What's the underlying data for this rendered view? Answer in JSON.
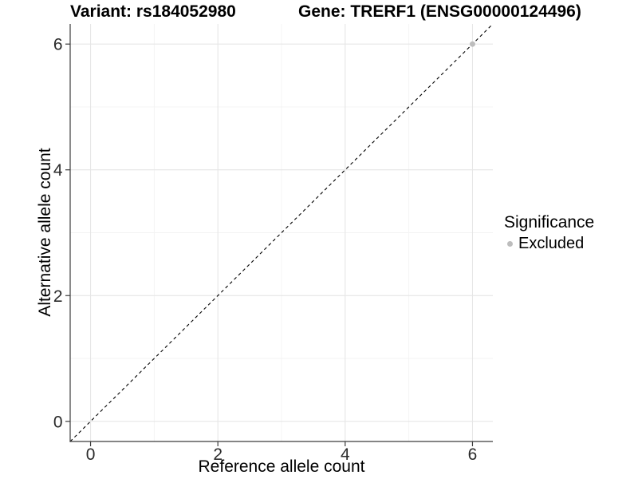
{
  "header": {
    "title_left": "Variant: rs184052980",
    "title_right": "Gene: TRERF1 (ENSG00000124496)"
  },
  "axes": {
    "x_title": "Reference allele count",
    "y_title": "Alternative allele count"
  },
  "legend": {
    "title": "Significance",
    "items": [
      {
        "label": "Excluded",
        "color": "#bdbdbd",
        "marker": "dot"
      }
    ]
  },
  "colors": {
    "background": "#ffffff",
    "grid_major": "#e6e6e6",
    "grid_minor": "#f3f3f3",
    "axis_line": "#3c3c3c",
    "tick_text": "#2a2a2a",
    "title_text": "#000000",
    "reference_line": "#000000",
    "excluded_point": "#bdbdbd"
  },
  "chart_data": {
    "type": "scatter",
    "title": "Variant: rs184052980   |   Gene: TRERF1 (ENSG00000124496)",
    "xlabel": "Reference allele count",
    "ylabel": "Alternative allele count",
    "xlim": [
      -0.32,
      6.32
    ],
    "ylim": [
      -0.32,
      6.32
    ],
    "xticks": [
      0,
      2,
      4,
      6
    ],
    "yticks": [
      0,
      2,
      4,
      6
    ],
    "x_minor_gridlines": [
      1,
      3,
      5
    ],
    "y_minor_gridlines": [
      1,
      3,
      5
    ],
    "grid": "major+minor",
    "panel_background": "#ffffff",
    "legend_position": "right",
    "legend_title": "Significance",
    "series": [
      {
        "name": "Excluded",
        "color": "#bdbdbd",
        "marker": "circle",
        "points": [
          {
            "x": 6,
            "y": 6
          }
        ]
      }
    ],
    "reference_line": {
      "type": "abline",
      "slope": 1,
      "intercept": 0,
      "linetype": "dashed",
      "color": "#000000"
    }
  }
}
